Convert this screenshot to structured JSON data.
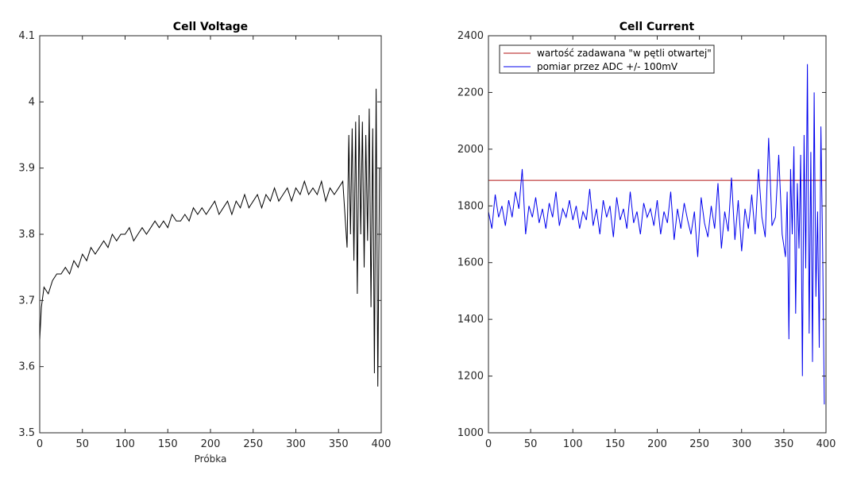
{
  "chart_data": [
    {
      "type": "line",
      "title": "Cell Voltage",
      "xlabel": "Próbka",
      "ylabel": "",
      "xlim": [
        0,
        400
      ],
      "ylim": [
        3.5,
        4.1
      ],
      "xticks": [
        0,
        50,
        100,
        150,
        200,
        250,
        300,
        350,
        400
      ],
      "yticks": [
        3.5,
        3.6,
        3.7,
        3.8,
        3.9,
        4.0,
        4.1
      ],
      "ytick_labels": [
        "3.5",
        "3.6",
        "3.7",
        "3.8",
        "3.9",
        "4",
        "4.1"
      ],
      "grid": false,
      "series": [
        {
          "color": "#000000",
          "x": [
            0,
            2,
            5,
            10,
            15,
            20,
            25,
            30,
            35,
            40,
            45,
            50,
            55,
            60,
            65,
            70,
            75,
            80,
            85,
            90,
            95,
            100,
            105,
            110,
            115,
            120,
            125,
            130,
            135,
            140,
            145,
            150,
            155,
            160,
            165,
            170,
            175,
            180,
            185,
            190,
            195,
            200,
            205,
            210,
            215,
            220,
            225,
            230,
            235,
            240,
            245,
            250,
            255,
            260,
            265,
            270,
            275,
            280,
            285,
            290,
            295,
            300,
            305,
            310,
            315,
            320,
            325,
            330,
            335,
            340,
            345,
            350,
            355,
            360,
            362,
            364,
            366,
            368,
            370,
            372,
            374,
            376,
            378,
            380,
            382,
            384,
            386,
            388,
            390,
            392,
            394,
            396,
            398
          ],
          "y": [
            3.64,
            3.69,
            3.72,
            3.71,
            3.73,
            3.74,
            3.74,
            3.75,
            3.74,
            3.76,
            3.75,
            3.77,
            3.76,
            3.78,
            3.77,
            3.78,
            3.79,
            3.78,
            3.8,
            3.79,
            3.8,
            3.8,
            3.81,
            3.79,
            3.8,
            3.81,
            3.8,
            3.81,
            3.82,
            3.81,
            3.82,
            3.81,
            3.83,
            3.82,
            3.82,
            3.83,
            3.82,
            3.84,
            3.83,
            3.84,
            3.83,
            3.84,
            3.85,
            3.83,
            3.84,
            3.85,
            3.83,
            3.85,
            3.84,
            3.86,
            3.84,
            3.85,
            3.86,
            3.84,
            3.86,
            3.85,
            3.87,
            3.85,
            3.86,
            3.87,
            3.85,
            3.87,
            3.86,
            3.88,
            3.86,
            3.87,
            3.86,
            3.88,
            3.85,
            3.87,
            3.86,
            3.87,
            3.88,
            3.78,
            3.95,
            3.8,
            3.96,
            3.76,
            3.97,
            3.71,
            3.98,
            3.8,
            3.97,
            3.75,
            3.95,
            3.79,
            3.99,
            3.69,
            3.96,
            3.59,
            4.02,
            3.57,
            3.9
          ]
        }
      ]
    },
    {
      "type": "line",
      "title": "Cell Current",
      "xlabel": "",
      "ylabel": "",
      "xlim": [
        0,
        400
      ],
      "ylim": [
        1000,
        2400
      ],
      "xticks": [
        0,
        50,
        100,
        150,
        200,
        250,
        300,
        350,
        400
      ],
      "yticks": [
        1000,
        1200,
        1400,
        1600,
        1800,
        2000,
        2200,
        2400
      ],
      "ytick_labels": [
        "1000",
        "1200",
        "1400",
        "1600",
        "1800",
        "2000",
        "2200",
        "2400"
      ],
      "grid": false,
      "legend_position": "top-left",
      "series": [
        {
          "name": "wartość zadawana \"w pętli otwartej\"",
          "color": "#b01010",
          "x": [
            0,
            400
          ],
          "y": [
            1890,
            1890
          ]
        },
        {
          "name": "pomiar przez ADC +/- 100mV",
          "color": "#0000ee",
          "x": [
            0,
            4,
            8,
            12,
            16,
            20,
            24,
            28,
            32,
            36,
            40,
            44,
            48,
            52,
            56,
            60,
            64,
            68,
            72,
            76,
            80,
            84,
            88,
            92,
            96,
            100,
            104,
            108,
            112,
            116,
            120,
            124,
            128,
            132,
            136,
            140,
            144,
            148,
            152,
            156,
            160,
            164,
            168,
            172,
            176,
            180,
            184,
            188,
            192,
            196,
            200,
            204,
            208,
            212,
            216,
            220,
            224,
            228,
            232,
            236,
            240,
            244,
            248,
            252,
            256,
            260,
            264,
            268,
            272,
            276,
            280,
            284,
            288,
            292,
            296,
            300,
            304,
            308,
            312,
            316,
            320,
            324,
            328,
            332,
            336,
            340,
            344,
            348,
            352,
            354,
            356,
            358,
            360,
            362,
            364,
            366,
            368,
            370,
            372,
            374,
            376,
            378,
            380,
            382,
            384,
            386,
            388,
            390,
            392,
            394,
            396,
            398
          ],
          "y": [
            1780,
            1720,
            1840,
            1760,
            1800,
            1730,
            1820,
            1760,
            1850,
            1790,
            1930,
            1700,
            1800,
            1760,
            1830,
            1740,
            1790,
            1720,
            1810,
            1760,
            1850,
            1730,
            1790,
            1760,
            1820,
            1750,
            1800,
            1720,
            1780,
            1750,
            1860,
            1730,
            1790,
            1700,
            1820,
            1760,
            1800,
            1690,
            1830,
            1750,
            1790,
            1720,
            1850,
            1740,
            1780,
            1700,
            1810,
            1760,
            1790,
            1730,
            1820,
            1700,
            1780,
            1740,
            1850,
            1680,
            1790,
            1720,
            1810,
            1750,
            1700,
            1780,
            1620,
            1830,
            1740,
            1690,
            1800,
            1720,
            1880,
            1650,
            1780,
            1710,
            1900,
            1680,
            1820,
            1640,
            1790,
            1720,
            1840,
            1700,
            1930,
            1760,
            1690,
            2040,
            1730,
            1760,
            1980,
            1700,
            1620,
            1850,
            1330,
            1930,
            1700,
            2010,
            1420,
            1880,
            1650,
            1980,
            1200,
            2050,
            1580,
            2300,
            1350,
            1990,
            1250,
            2200,
            1480,
            1780,
            1300,
            2080,
            1640,
            1100
          ]
        }
      ]
    }
  ]
}
